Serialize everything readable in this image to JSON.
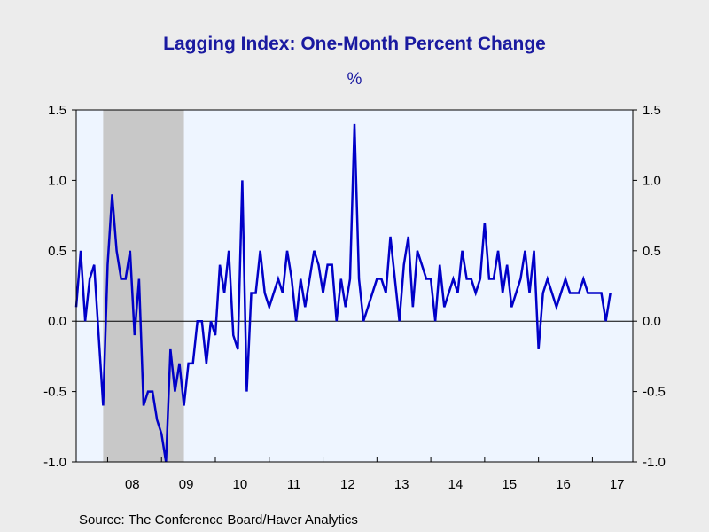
{
  "colors": {
    "line": "#0000c8",
    "plot_bg": "#eef5ff",
    "recession": "#c8c8c8",
    "page_bg": "#ececec",
    "title": "#1a1aa0",
    "axis_labels": "#1a1aa0"
  },
  "source": "Source:  The Conference Board/Haver Analytics",
  "chart_data": {
    "type": "line",
    "title": "Lagging Index: One-Month Percent Change",
    "ylabel": "%",
    "ylim": [
      -1.0,
      1.5
    ],
    "yticks": [
      "1.5",
      "1.0",
      "0.5",
      "0.0",
      "-0.5",
      "-1.0"
    ],
    "ytick_values": [
      1.5,
      1.0,
      0.5,
      0.0,
      -0.5,
      -1.0
    ],
    "xlim": [
      "2007-06",
      "2017-10"
    ],
    "xtick_labels": [
      "08",
      "09",
      "10",
      "11",
      "12",
      "13",
      "14",
      "15",
      "16",
      "17"
    ],
    "right_axis": true,
    "zero_line": true,
    "recession_shading": [
      {
        "start": "2007-12",
        "end": "2009-06"
      }
    ],
    "series": [
      {
        "start": "2007-06",
        "frequency": "monthly",
        "values": [
          0.1,
          0.5,
          0.0,
          0.3,
          0.4,
          -0.1,
          -0.6,
          0.4,
          0.9,
          0.5,
          0.3,
          0.3,
          0.5,
          -0.1,
          0.3,
          -0.6,
          -0.5,
          -0.5,
          -0.7,
          -0.8,
          -1.0,
          -0.2,
          -0.5,
          -0.3,
          -0.6,
          -0.3,
          -0.3,
          0.0,
          0.0,
          -0.3,
          0.0,
          -0.1,
          0.4,
          0.2,
          0.5,
          -0.1,
          -0.2,
          1.0,
          -0.5,
          0.2,
          0.2,
          0.5,
          0.2,
          0.1,
          0.2,
          0.3,
          0.2,
          0.5,
          0.3,
          0.0,
          0.3,
          0.1,
          0.3,
          0.5,
          0.4,
          0.2,
          0.4,
          0.4,
          0.0,
          0.3,
          0.1,
          0.3,
          1.4,
          0.3,
          0.0,
          0.1,
          0.2,
          0.3,
          0.3,
          0.2,
          0.6,
          0.3,
          0.0,
          0.4,
          0.6,
          0.1,
          0.5,
          0.4,
          0.3,
          0.3,
          0.0,
          0.4,
          0.1,
          0.2,
          0.3,
          0.2,
          0.5,
          0.3,
          0.3,
          0.2,
          0.3,
          0.7,
          0.3,
          0.3,
          0.5,
          0.2,
          0.4,
          0.1,
          0.2,
          0.3,
          0.5,
          0.2,
          0.5,
          -0.2,
          0.2,
          0.3,
          0.2,
          0.1,
          0.2,
          0.3,
          0.2,
          0.2,
          0.2,
          0.3,
          0.2,
          0.2,
          0.2,
          0.2,
          0.0,
          0.2
        ]
      }
    ]
  }
}
